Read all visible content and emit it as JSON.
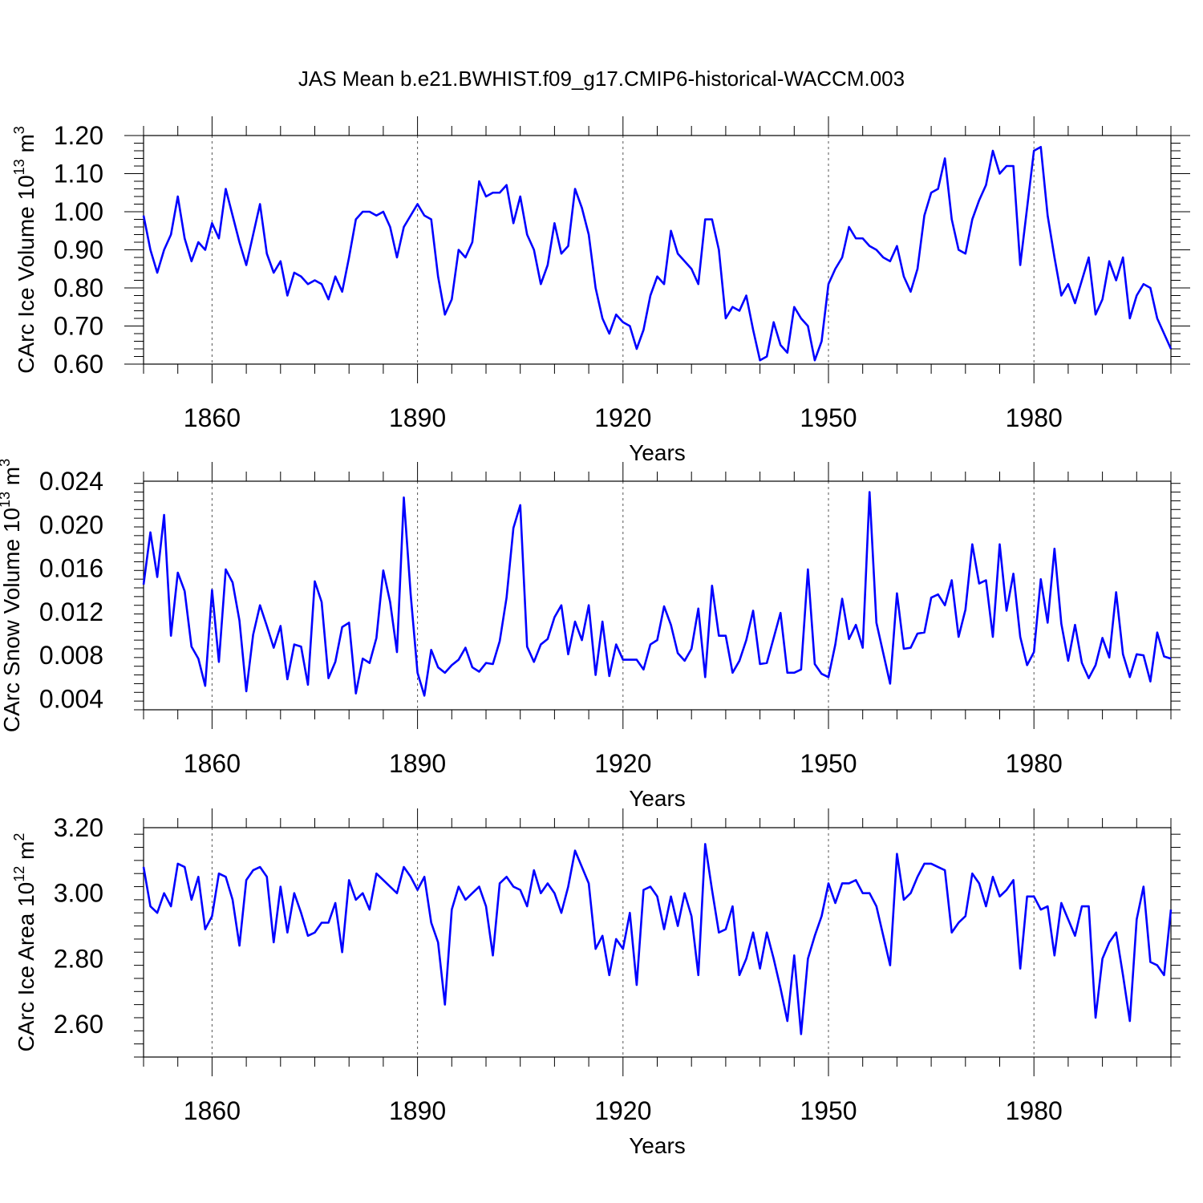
{
  "figure": {
    "title": "JAS Mean b.e21.BWHIST.f09_g17.CMIP6-historical-WACCM.003",
    "line_color": "#0000ff",
    "grid_color": "#555555"
  },
  "chart_data": [
    {
      "type": "line",
      "title": "",
      "xlabel": "Years",
      "ylabel": "CArc Ice Volume 10",
      "ylabel_exponent": "13",
      "ylabel_unit": " m",
      "ylabel_unit_exponent": "3",
      "xlim": [
        1850,
        2000
      ],
      "ylim": [
        0.6,
        1.2
      ],
      "yticks": [
        0.6,
        0.7,
        0.8,
        0.9,
        1.0,
        1.1,
        1.2
      ],
      "ytick_labels": [
        "0.60",
        "0.70",
        "0.80",
        "0.90",
        "1.00",
        "1.10",
        "1.20"
      ],
      "xticks": [
        1860,
        1890,
        1920,
        1950,
        1980
      ],
      "xtick_labels": [
        "1860",
        "1890",
        "1920",
        "1950",
        "1980"
      ],
      "grid": "vertical-dashed",
      "x_start": 1850,
      "values": [
        0.99,
        0.9,
        0.84,
        0.9,
        0.94,
        1.04,
        0.93,
        0.87,
        0.92,
        0.9,
        0.97,
        0.93,
        1.06,
        0.99,
        0.92,
        0.86,
        0.94,
        1.02,
        0.89,
        0.84,
        0.87,
        0.78,
        0.84,
        0.83,
        0.81,
        0.82,
        0.81,
        0.77,
        0.83,
        0.79,
        0.88,
        0.98,
        1.0,
        1.0,
        0.99,
        1.0,
        0.96,
        0.88,
        0.96,
        0.99,
        1.02,
        0.99,
        0.98,
        0.83,
        0.73,
        0.77,
        0.9,
        0.88,
        0.92,
        1.08,
        1.04,
        1.05,
        1.05,
        1.07,
        0.97,
        1.04,
        0.94,
        0.9,
        0.81,
        0.86,
        0.97,
        0.89,
        0.91,
        1.06,
        1.01,
        0.94,
        0.8,
        0.72,
        0.68,
        0.73,
        0.71,
        0.7,
        0.64,
        0.69,
        0.78,
        0.83,
        0.81,
        0.95,
        0.89,
        0.87,
        0.85,
        0.81,
        0.98,
        0.98,
        0.9,
        0.72,
        0.75,
        0.74,
        0.78,
        0.69,
        0.61,
        0.62,
        0.71,
        0.65,
        0.63,
        0.75,
        0.72,
        0.7,
        0.61,
        0.66,
        0.81,
        0.85,
        0.88,
        0.96,
        0.93,
        0.93,
        0.91,
        0.9,
        0.88,
        0.87,
        0.91,
        0.83,
        0.79,
        0.85,
        0.99,
        1.05,
        1.06,
        1.14,
        0.98,
        0.9,
        0.89,
        0.98,
        1.03,
        1.07,
        1.16,
        1.1,
        1.12,
        1.12,
        0.86,
        1.01,
        1.16,
        1.17,
        0.99,
        0.88,
        0.78,
        0.81,
        0.76,
        0.82,
        0.88,
        0.73,
        0.77,
        0.87,
        0.82,
        0.88,
        0.72,
        0.78,
        0.81,
        0.8,
        0.72,
        0.68,
        0.64
      ]
    },
    {
      "type": "line",
      "title": "",
      "xlabel": "Years",
      "ylabel": "CArc Snow Volume 10",
      "ylabel_exponent": "13",
      "ylabel_unit": " m",
      "ylabel_unit_exponent": "3",
      "xlim": [
        1850,
        2000
      ],
      "ylim": [
        0.003,
        0.024
      ],
      "yticks": [
        0.004,
        0.008,
        0.012,
        0.016,
        0.02,
        0.024
      ],
      "ytick_labels": [
        "0.004",
        "0.008",
        "0.012",
        "0.016",
        "0.020",
        "0.024"
      ],
      "xticks": [
        1860,
        1890,
        1920,
        1950,
        1980
      ],
      "xtick_labels": [
        "1860",
        "1890",
        "1920",
        "1950",
        "1980"
      ],
      "grid": "vertical-dashed",
      "x_start": 1850,
      "values": [
        0.0145,
        0.0193,
        0.0152,
        0.0209,
        0.0098,
        0.0156,
        0.0139,
        0.0088,
        0.0077,
        0.0052,
        0.014,
        0.0074,
        0.0159,
        0.0147,
        0.0112,
        0.0047,
        0.0099,
        0.0126,
        0.0107,
        0.0087,
        0.0107,
        0.0058,
        0.009,
        0.0088,
        0.0053,
        0.0148,
        0.0129,
        0.0059,
        0.0074,
        0.0106,
        0.011,
        0.0045,
        0.0077,
        0.0073,
        0.0096,
        0.0158,
        0.0129,
        0.0083,
        0.0225,
        0.0136,
        0.0064,
        0.0043,
        0.0085,
        0.0069,
        0.0064,
        0.0071,
        0.0076,
        0.0087,
        0.0069,
        0.0065,
        0.0073,
        0.0072,
        0.0093,
        0.0133,
        0.0197,
        0.0218,
        0.0088,
        0.0074,
        0.009,
        0.0095,
        0.0115,
        0.0126,
        0.0081,
        0.0111,
        0.0094,
        0.0126,
        0.0062,
        0.0111,
        0.0061,
        0.009,
        0.0076,
        0.0076,
        0.0076,
        0.0067,
        0.009,
        0.0094,
        0.0125,
        0.0108,
        0.0082,
        0.0075,
        0.0086,
        0.0123,
        0.006,
        0.0144,
        0.0098,
        0.0098,
        0.0064,
        0.0075,
        0.0094,
        0.0121,
        0.0072,
        0.0073,
        0.0096,
        0.0119,
        0.0064,
        0.0064,
        0.0067,
        0.0159,
        0.0072,
        0.0063,
        0.006,
        0.009,
        0.0132,
        0.0095,
        0.0108,
        0.0087,
        0.023,
        0.011,
        0.0082,
        0.0054,
        0.0137,
        0.0086,
        0.0087,
        0.01,
        0.0101,
        0.0133,
        0.0136,
        0.0126,
        0.0149,
        0.0097,
        0.0122,
        0.0182,
        0.0146,
        0.0149,
        0.0097,
        0.0182,
        0.0121,
        0.0155,
        0.0097,
        0.0071,
        0.0083,
        0.015,
        0.011,
        0.0178,
        0.0109,
        0.0075,
        0.0108,
        0.0073,
        0.0059,
        0.0071,
        0.0096,
        0.0078,
        0.0138,
        0.0081,
        0.006,
        0.0081,
        0.008,
        0.0056,
        0.0101,
        0.0079,
        0.0077
      ]
    },
    {
      "type": "line",
      "title": "",
      "xlabel": "Years",
      "ylabel": "CArc Ice Area 10",
      "ylabel_exponent": "12",
      "ylabel_unit": " m",
      "ylabel_unit_exponent": "2",
      "xlim": [
        1850,
        2000
      ],
      "ylim": [
        2.5,
        3.2
      ],
      "yticks": [
        2.6,
        2.8,
        3.0,
        3.2
      ],
      "ytick_labels": [
        "2.60",
        "2.80",
        "3.00",
        "3.20"
      ],
      "xticks": [
        1860,
        1890,
        1920,
        1950,
        1980
      ],
      "xtick_labels": [
        "1860",
        "1890",
        "1920",
        "1950",
        "1980"
      ],
      "grid": "vertical-dashed",
      "x_start": 1850,
      "values": [
        3.08,
        2.96,
        2.94,
        3.0,
        2.96,
        3.09,
        3.08,
        2.98,
        3.05,
        2.89,
        2.93,
        3.06,
        3.05,
        2.98,
        2.84,
        3.04,
        3.07,
        3.08,
        3.05,
        2.85,
        3.02,
        2.88,
        3.0,
        2.94,
        2.87,
        2.88,
        2.91,
        2.91,
        2.97,
        2.82,
        3.04,
        2.98,
        3.0,
        2.95,
        3.06,
        3.04,
        3.02,
        3.0,
        3.08,
        3.05,
        3.01,
        3.05,
        2.91,
        2.85,
        2.66,
        2.95,
        3.02,
        2.98,
        3.0,
        3.02,
        2.96,
        2.81,
        3.03,
        3.05,
        3.02,
        3.01,
        2.96,
        3.07,
        3.0,
        3.03,
        3.0,
        2.94,
        3.02,
        3.13,
        3.08,
        3.03,
        2.83,
        2.87,
        2.75,
        2.86,
        2.83,
        2.94,
        2.72,
        3.01,
        3.02,
        2.99,
        2.89,
        2.99,
        2.9,
        3.0,
        2.93,
        2.75,
        3.15,
        3.01,
        2.88,
        2.89,
        2.96,
        2.75,
        2.8,
        2.88,
        2.77,
        2.88,
        2.8,
        2.71,
        2.61,
        2.81,
        2.57,
        2.8,
        2.87,
        2.93,
        3.03,
        2.97,
        3.03,
        3.03,
        3.04,
        3.0,
        3.0,
        2.96,
        2.87,
        2.78,
        3.12,
        2.98,
        3.0,
        3.05,
        3.09,
        3.09,
        3.08,
        3.07,
        2.88,
        2.91,
        2.93,
        3.06,
        3.03,
        2.96,
        3.05,
        2.99,
        3.01,
        3.04,
        2.77,
        2.99,
        2.99,
        2.95,
        2.96,
        2.81,
        2.97,
        2.92,
        2.87,
        2.96,
        2.96,
        2.62,
        2.8,
        2.85,
        2.88,
        2.75,
        2.61,
        2.92,
        3.02,
        2.79,
        2.78,
        2.75,
        2.95
      ]
    }
  ]
}
